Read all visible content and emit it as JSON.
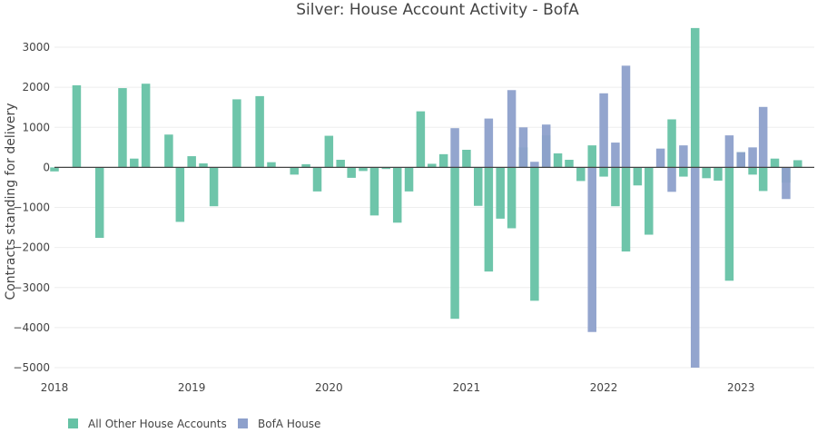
{
  "chart_data": {
    "type": "bar",
    "title": "Silver: House Account Activity - BofA",
    "xlabel": "",
    "ylabel": "Contracts standing for delivery",
    "ylim": [
      -5000,
      3500
    ],
    "yticks": [
      3000,
      2000,
      1000,
      0,
      -1000,
      -2000,
      -3000,
      -4000,
      -5000
    ],
    "ytick_labels": [
      "3000",
      "2000",
      "1000",
      "0",
      "−1000",
      "−2000",
      "−3000",
      "−4000",
      "−5000"
    ],
    "xticks": [
      "2018",
      "2019",
      "2020",
      "2021",
      "2022",
      "2023"
    ],
    "grid": true,
    "legend_position": "bottom-left",
    "barmode": "overlay",
    "x": [
      "2018-01",
      "2018-02",
      "2018-03",
      "2018-04",
      "2018-05",
      "2018-06",
      "2018-07",
      "2018-08",
      "2018-09",
      "2018-10",
      "2018-11",
      "2018-12",
      "2019-01",
      "2019-02",
      "2019-03",
      "2019-04",
      "2019-05",
      "2019-06",
      "2019-07",
      "2019-08",
      "2019-09",
      "2019-10",
      "2019-11",
      "2019-12",
      "2020-01",
      "2020-02",
      "2020-03",
      "2020-04",
      "2020-05",
      "2020-06",
      "2020-07",
      "2020-08",
      "2020-09",
      "2020-10",
      "2020-11",
      "2020-12",
      "2021-01",
      "2021-02",
      "2021-03",
      "2021-04",
      "2021-05",
      "2021-06",
      "2021-07",
      "2021-08",
      "2021-09",
      "2021-10",
      "2021-11",
      "2021-12",
      "2022-01",
      "2022-02",
      "2022-03",
      "2022-04",
      "2022-05",
      "2022-06",
      "2022-07",
      "2022-08",
      "2022-09",
      "2022-10",
      "2022-11",
      "2022-12",
      "2023-01",
      "2023-02",
      "2023-03",
      "2023-04",
      "2023-05",
      "2023-06",
      "2023-07"
    ],
    "series": [
      {
        "name": "All Other House Accounts",
        "color": "#66c2a5",
        "values": [
          -100,
          10,
          2050,
          0,
          -1760,
          0,
          1980,
          220,
          2090,
          0,
          820,
          -1360,
          280,
          100,
          -970,
          0,
          1700,
          0,
          1780,
          130,
          0,
          -180,
          80,
          -600,
          790,
          190,
          -260,
          -90,
          -1200,
          -40,
          -1380,
          -600,
          1400,
          90,
          330,
          -3780,
          440,
          -960,
          -2600,
          -1280,
          -1520,
          500,
          -3330,
          800,
          350,
          190,
          -340,
          550,
          -230,
          -970,
          -2100,
          -450,
          -1680,
          0,
          1200,
          -230,
          3480,
          -270,
          -330,
          -2830,
          380,
          -180,
          -590,
          220,
          -380,
          180,
          0
        ]
      },
      {
        "name": "BofA House",
        "color": "#8da0cb",
        "values": [
          0,
          0,
          0,
          0,
          0,
          0,
          0,
          0,
          0,
          0,
          0,
          0,
          0,
          0,
          0,
          0,
          0,
          0,
          0,
          0,
          0,
          0,
          0,
          0,
          0,
          0,
          0,
          0,
          0,
          0,
          0,
          0,
          0,
          0,
          0,
          980,
          0,
          0,
          1220,
          0,
          1930,
          1000,
          140,
          1070,
          0,
          0,
          0,
          -4110,
          1850,
          620,
          2540,
          0,
          0,
          470,
          -610,
          550,
          -5000,
          0,
          0,
          800,
          380,
          500,
          1510,
          0,
          -790,
          0,
          0
        ]
      }
    ]
  }
}
